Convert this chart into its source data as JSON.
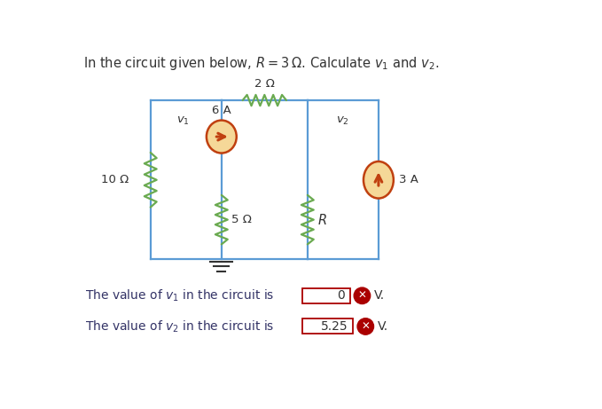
{
  "background_color": "#ffffff",
  "circuit_line_color": "#5b9bd5",
  "resistor_color": "#6aaa50",
  "current_source_fill": "#f5d898",
  "current_source_border": "#c04010",
  "arrow_color": "#c04010",
  "answer_box_color": "#aa0000",
  "text_color": "#333333",
  "label_v1": "$v_1$",
  "label_v2": "$v_2$",
  "label_10ohm": "10 Ω",
  "label_5ohm": "5 Ω",
  "label_2ohm": "2 Ω",
  "label_R": "$R$",
  "label_6A": "6 A",
  "label_3A": "3 A",
  "answer1_value": "0",
  "answer2_value": "5.25",
  "title": "In the circuit given below, $R$ = 3 Ω. Calculate $v_1$ and $v_2$."
}
